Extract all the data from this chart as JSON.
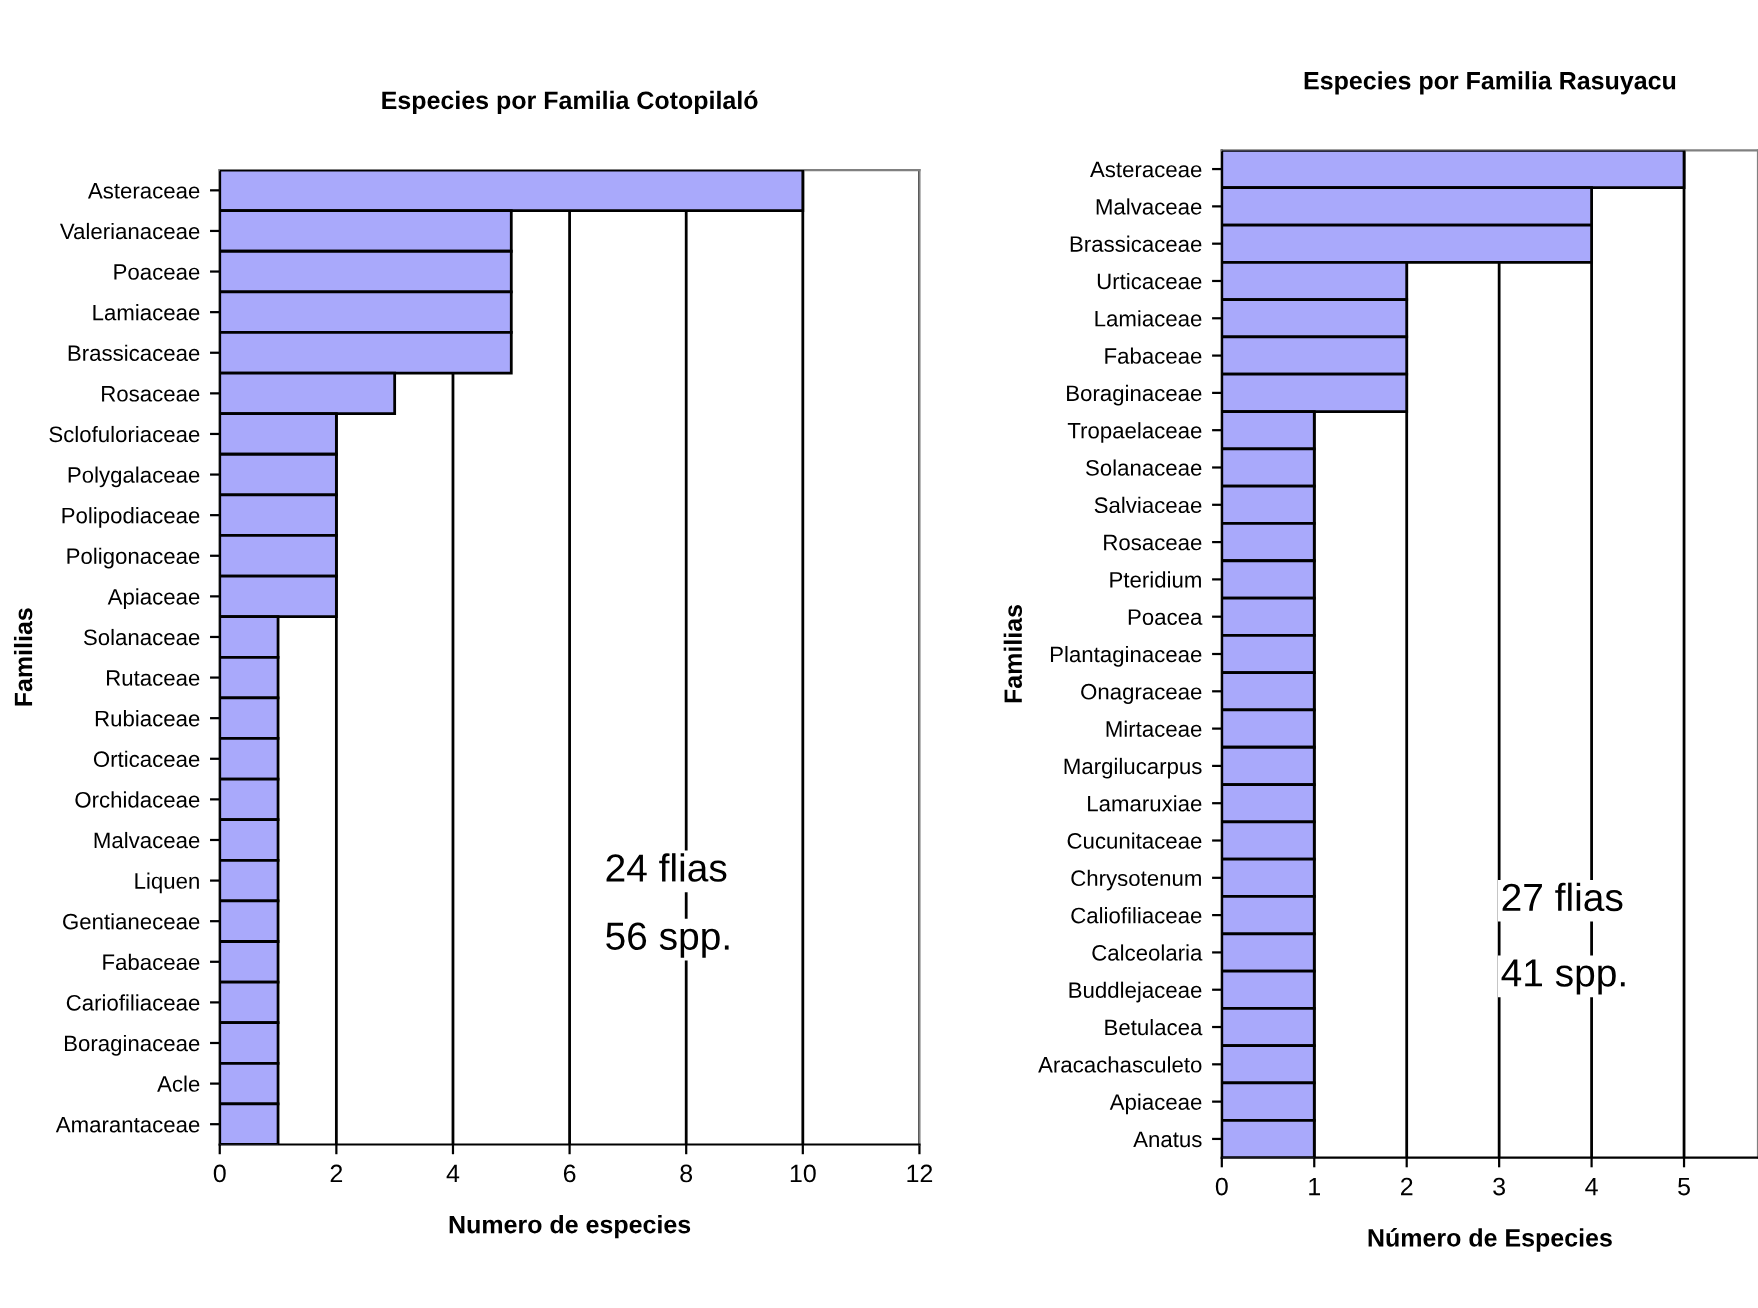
{
  "chart_data": [
    {
      "type": "bar",
      "orientation": "horizontal",
      "title": "Especies por Familia Cotopilaló",
      "xlabel": "Numero de especies",
      "ylabel": "Familias",
      "categories": [
        "Asteraceae",
        "Valerianaceae",
        "Poaceae",
        "Lamiaceae",
        "Brassicaceae",
        "Rosaceae",
        "Sclofuloriaceae",
        "Polygalaceae",
        "Polipodiaceae",
        "Poligonaceae",
        "Apiaceae",
        "Solanaceae",
        "Rutaceae",
        "Rubiaceae",
        "Orticaceae",
        "Orchidaceae",
        "Malvaceae",
        "Liquen",
        "Gentianeceae",
        "Fabaceae",
        "Cariofiliaceae",
        "Boraginaceae",
        "Acle",
        "Amarantaceae"
      ],
      "values": [
        10,
        5,
        5,
        5,
        5,
        3,
        2,
        2,
        2,
        2,
        2,
        1,
        1,
        1,
        1,
        1,
        1,
        1,
        1,
        1,
        1,
        1,
        1,
        1
      ],
      "color": "#a9a9fb",
      "xlim": [
        0,
        12
      ],
      "xticks": [
        0,
        2,
        4,
        6,
        8,
        10,
        12
      ],
      "grid": "x",
      "annotations": [
        {
          "text": "24 flias"
        },
        {
          "text": "56 spp."
        }
      ]
    },
    {
      "type": "bar",
      "orientation": "horizontal",
      "title": "Especies por Familia Rasuyacu",
      "xlabel": "Número de Especies",
      "ylabel": "Familias",
      "categories": [
        "Asteraceae",
        "Malvaceae",
        "Brassicaceae",
        "Urticaceae",
        "Lamiaceae",
        "Fabaceae",
        "Boraginaceae",
        "Tropaelaceae",
        "Solanaceae",
        "Salviaceae",
        "Rosaceae",
        "Pteridium",
        "Poacea",
        "Plantaginaceae",
        "Onagraceae",
        "Mirtaceae",
        "Margilucarpus",
        "Lamaruxiae",
        "Cucunitaceae",
        "Chrysotenum",
        "Caliofiliaceae",
        "Calceolaria",
        "Buddlejaceae",
        "Betulacea",
        "Aracachasculeto",
        "Apiaceae",
        "Anatus"
      ],
      "values": [
        5,
        4,
        4,
        2,
        2,
        2,
        2,
        1,
        1,
        1,
        1,
        1,
        1,
        1,
        1,
        1,
        1,
        1,
        1,
        1,
        1,
        1,
        1,
        1,
        1,
        1,
        1
      ],
      "color": "#a9a9fb",
      "xlim": [
        0,
        5.8
      ],
      "xticks": [
        0,
        1,
        2,
        3,
        4,
        5
      ],
      "grid": "x",
      "annotations": [
        {
          "text": "27 flias"
        },
        {
          "text": "41 spp."
        }
      ]
    }
  ]
}
